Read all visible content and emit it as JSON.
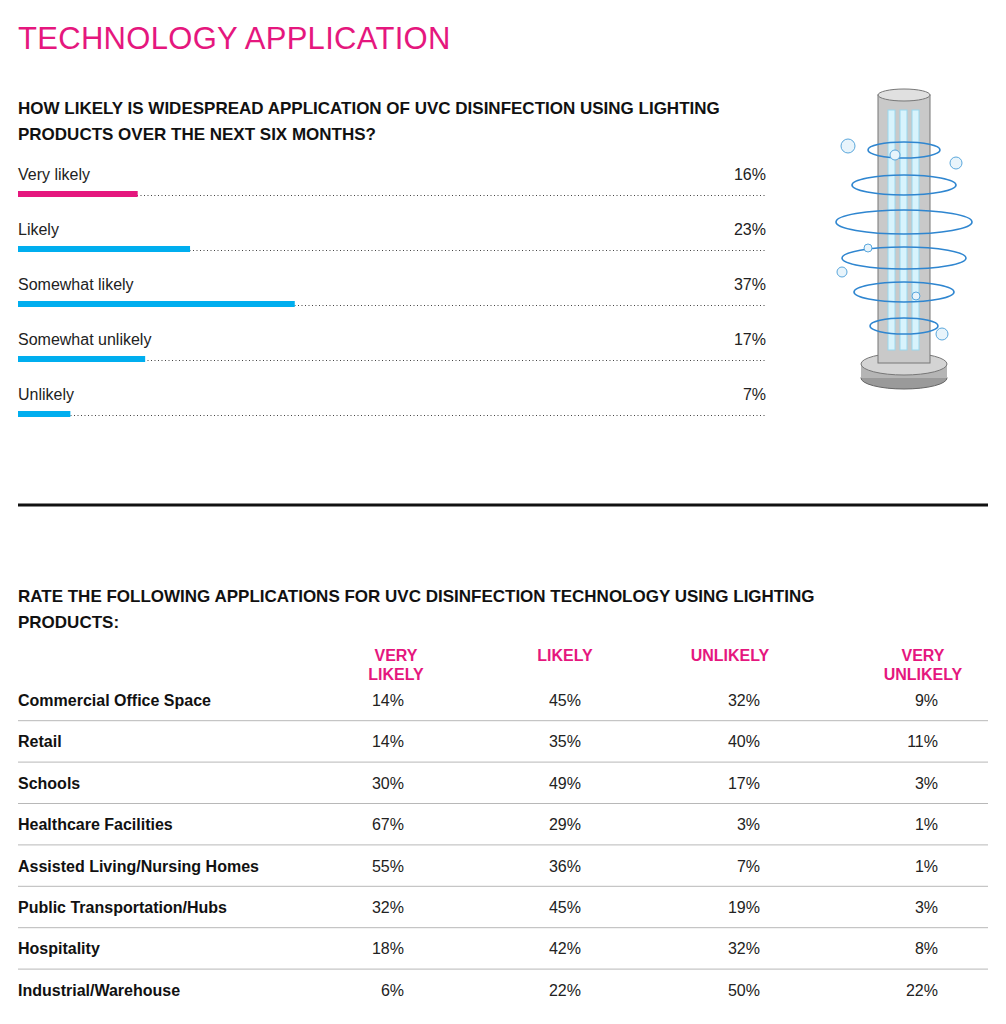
{
  "header": {
    "title": "TECHNOLOGY APPLICATION"
  },
  "chart_data": {
    "type": "bar",
    "orientation": "horizontal",
    "title": "HOW LIKELY IS WIDESPREAD APPLICATION OF UVC DISINFECTION USING LIGHTING PRODUCTS OVER THE NEXT SIX MONTHS?",
    "categories": [
      "Very likely",
      "Likely",
      "Somewhat likely",
      "Somewhat unlikely",
      "Unlikely"
    ],
    "values": [
      16,
      23,
      37,
      17,
      7
    ],
    "value_labels": [
      "16%",
      "23%",
      "37%",
      "17%",
      "7%"
    ],
    "colors": [
      "#e5177e",
      "#00aeef",
      "#00aeef",
      "#00aeef",
      "#00aeef"
    ],
    "xlim": [
      0,
      100
    ],
    "data_labels": true,
    "tick_labels": false
  },
  "table": {
    "title": "RATE THE FOLLOWING APPLICATIONS FOR UVC DISINFECTION TECHNOLOGY USING LIGHTING PRODUCTS:",
    "columns": [
      "VERY LIKELY",
      "LIKELY",
      "UNLIKELY",
      "VERY UNLIKELY"
    ],
    "rows": [
      {
        "label": "Commercial Office Space",
        "cells": [
          "14%",
          "45%",
          "32%",
          "9%"
        ]
      },
      {
        "label": "Retail",
        "cells": [
          "14%",
          "35%",
          "40%",
          "11%"
        ]
      },
      {
        "label": "Schools",
        "cells": [
          "30%",
          "49%",
          "17%",
          "3%"
        ]
      },
      {
        "label": "Healthcare Facilities",
        "cells": [
          "67%",
          "29%",
          "3%",
          "1%"
        ]
      },
      {
        "label": "Assisted Living/Nursing Homes",
        "cells": [
          "55%",
          "36%",
          "7%",
          "1%"
        ]
      },
      {
        "label": "Public Transportation/Hubs",
        "cells": [
          "32%",
          "45%",
          "19%",
          "3%"
        ]
      },
      {
        "label": "Hospitality",
        "cells": [
          "18%",
          "42%",
          "32%",
          "8%"
        ]
      },
      {
        "label": "Industrial/Warehouse",
        "cells": [
          "6%",
          "22%",
          "50%",
          "22%"
        ]
      }
    ]
  }
}
